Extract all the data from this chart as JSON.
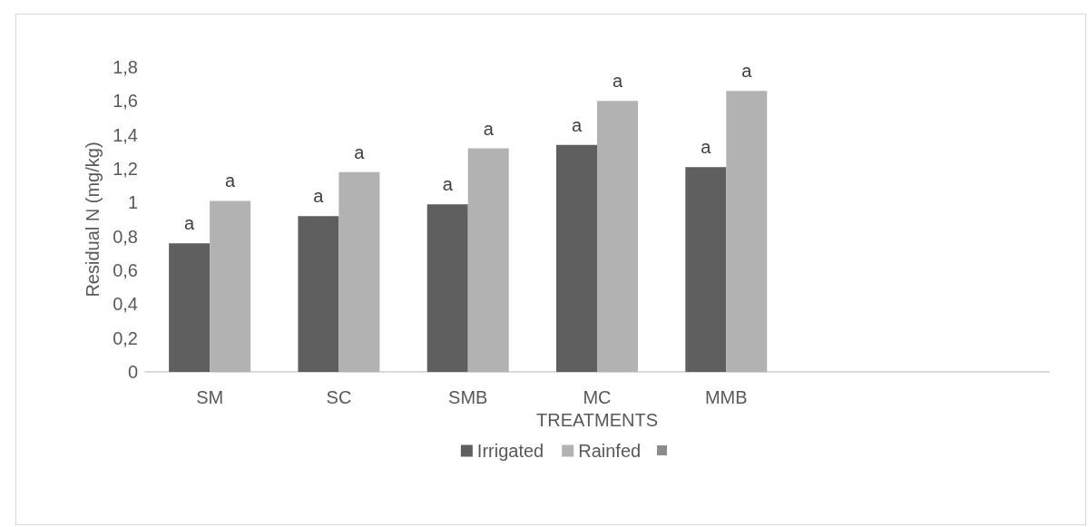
{
  "chart_data": {
    "type": "bar",
    "xlabel": "TREATMENTS",
    "ylabel": "Residual N (mg/kg)",
    "categories": [
      "SM",
      "SC",
      "SMB",
      "MC",
      "MMB",
      null,
      null
    ],
    "series": [
      {
        "name": "Irrigated",
        "color": "#5f5f5f",
        "values": [
          0.76,
          0.92,
          0.99,
          1.34,
          1.21,
          null,
          null
        ],
        "value_labels": [
          "a",
          "a",
          "a",
          "a",
          "a",
          null,
          null
        ]
      },
      {
        "name": "Rainfed",
        "color": "#b2b2b2",
        "values": [
          1.01,
          1.18,
          1.32,
          1.6,
          1.66,
          null,
          null
        ],
        "value_labels": [
          "a",
          "a",
          "a",
          "a",
          "a",
          null,
          null
        ]
      }
    ],
    "ylim": [
      0,
      1.8
    ],
    "yticks": [
      0,
      {
        "value": 0.2,
        "label": "0,2"
      },
      {
        "value": 0.4,
        "label": "0,4"
      },
      {
        "value": 0.6,
        "label": "0,6"
      },
      {
        "value": 0.8,
        "label": "0,8"
      },
      1,
      {
        "value": 1.2,
        "label": "1,2"
      },
      {
        "value": 1.4,
        "label": "1,4"
      },
      {
        "value": 1.6,
        "label": "1,6"
      },
      {
        "value": 1.8,
        "label": "1,8"
      }
    ],
    "grid": false,
    "legend": "bottom"
  }
}
